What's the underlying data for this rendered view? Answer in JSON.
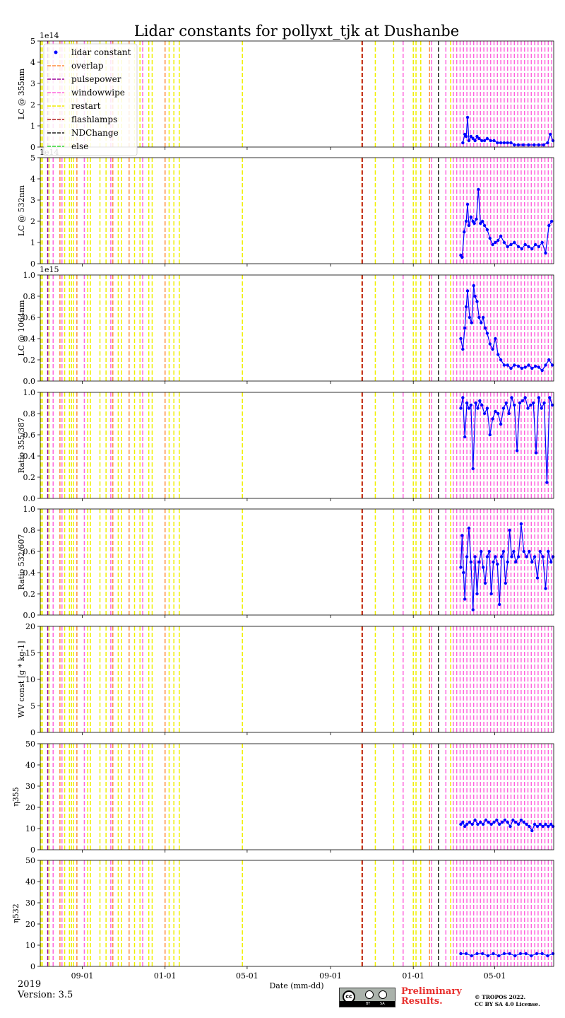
{
  "chart_data": {
    "type": "scatter",
    "title": "Lidar constants for pollyxt_tjk at Dushanbe",
    "xlabel": "Date (mm-dd)",
    "x_range": [
      "2019-07-01",
      "2021-07-27"
    ],
    "x_tick_labels": [
      "09-01",
      "01-01",
      "05-01",
      "09-01",
      "01-01",
      "05-01",
      "09-01",
      "01-01",
      "05-01"
    ],
    "x_tick_dates": [
      "2019-09-01",
      "2020-01-01",
      "2020-05-01",
      "2020-09-01",
      "2021-01-01",
      "2021-05-01",
      "2021-09-01",
      "2022-01-01",
      "2022-05-01"
    ],
    "year_label": "2019",
    "legend": {
      "placement": "upper-left of first panel",
      "entries": [
        {
          "label": "lidar constant",
          "color": "#0000ff",
          "marker": "dot"
        },
        {
          "label": "overlap",
          "color": "#ff8c3b",
          "marker": "dashed"
        },
        {
          "label": "pulsepower",
          "color": "#9b009b",
          "marker": "dashed"
        },
        {
          "label": "windowwipe",
          "color": "#ff66dd",
          "marker": "dashed"
        },
        {
          "label": "restart",
          "color": "#f0f000",
          "marker": "dashed"
        },
        {
          "label": "flashlamps",
          "color": "#b22222",
          "marker": "dashed"
        },
        {
          "label": "NDChange",
          "color": "#222222",
          "marker": "dashed"
        },
        {
          "label": "else",
          "color": "#33dd33",
          "marker": "dashed"
        }
      ]
    },
    "event_lines": {
      "restart": [
        "2019-07-02",
        "2019-07-04",
        "2019-07-14",
        "2019-08-06",
        "2019-08-13",
        "2019-08-16",
        "2019-08-19",
        "2019-09-09",
        "2019-09-13",
        "2019-09-27",
        "2019-10-06",
        "2019-10-24",
        "2019-10-29",
        "2019-11-17",
        "2019-11-25",
        "2019-12-08",
        "2019-12-13",
        "2020-01-07",
        "2020-01-14",
        "2020-01-22",
        "2020-04-24",
        "2020-11-06",
        "2020-12-03",
        "2021-01-01",
        "2021-01-05",
        "2021-01-12",
        "2021-02-07",
        "2021-02-25"
      ],
      "overlap": [
        "2019-07-30",
        "2019-08-24",
        "2019-10-16",
        "2019-11-09",
        "2020-01-01",
        "2020-10-17",
        "2021-01-25"
      ],
      "windowwipe": [
        "2019-07-20",
        "2019-08-02",
        "2019-09-04",
        "2019-10-13",
        "2019-11-29",
        "2020-12-17",
        "2021-01-28",
        "2021-02-18",
        "2021-03-01",
        "2021-03-06",
        "2021-03-11",
        "2021-03-16",
        "2021-03-21",
        "2021-03-26",
        "2021-03-31",
        "2021-04-05",
        "2021-04-10",
        "2021-04-15",
        "2021-04-20",
        "2021-04-25",
        "2021-04-30",
        "2021-05-05",
        "2021-05-10",
        "2021-05-15",
        "2021-05-20",
        "2021-05-25",
        "2021-05-30",
        "2021-06-04",
        "2021-06-09",
        "2021-06-14",
        "2021-06-19",
        "2021-06-24",
        "2021-06-29",
        "2021-07-04",
        "2021-07-09",
        "2021-07-14",
        "2021-07-19",
        "2021-07-24"
      ],
      "pulsepower": [
        "2019-07-12"
      ],
      "flashlamps": [
        "2020-10-18"
      ],
      "NDChange": [
        "2021-02-07"
      ],
      "else": []
    },
    "panels": [
      {
        "ylabel": "LC @ 355nm",
        "ylim": [
          0,
          5
        ],
        "yticks": [
          0,
          1,
          2,
          3,
          4,
          5
        ],
        "offset_label": "1e14",
        "series": [
          {
            "x": [
              "2021-03-15",
              "2021-03-18",
              "2021-03-20",
              "2021-03-22",
              "2021-03-24",
              "2021-03-27",
              "2021-03-30",
              "2021-04-02",
              "2021-04-05",
              "2021-04-08",
              "2021-04-12",
              "2021-04-16",
              "2021-04-20",
              "2021-04-25",
              "2021-04-30",
              "2021-05-05",
              "2021-05-10",
              "2021-05-15",
              "2021-05-20",
              "2021-05-25",
              "2021-05-30",
              "2021-06-05",
              "2021-06-12",
              "2021-06-20",
              "2021-06-28",
              "2021-07-05",
              "2021-07-12",
              "2021-07-18",
              "2021-07-22",
              "2021-07-26"
            ],
            "y": [
              0.2,
              0.6,
              0.5,
              1.4,
              0.3,
              0.5,
              0.4,
              0.3,
              0.5,
              0.4,
              0.3,
              0.3,
              0.4,
              0.3,
              0.3,
              0.2,
              0.2,
              0.2,
              0.2,
              0.2,
              0.1,
              0.1,
              0.1,
              0.1,
              0.1,
              0.1,
              0.1,
              0.2,
              0.6,
              0.3
            ]
          }
        ]
      },
      {
        "ylabel": "LC @ 532nm",
        "ylim": [
          0,
          5
        ],
        "yticks": [
          0,
          1,
          2,
          3,
          4,
          5
        ],
        "offset_label": "1e14",
        "series": [
          {
            "x": [
              "2021-03-12",
              "2021-03-14",
              "2021-03-17",
              "2021-03-20",
              "2021-03-22",
              "2021-03-24",
              "2021-03-27",
              "2021-03-30",
              "2021-04-01",
              "2021-04-04",
              "2021-04-07",
              "2021-04-10",
              "2021-04-13",
              "2021-04-16",
              "2021-04-20",
              "2021-04-24",
              "2021-04-28",
              "2021-05-02",
              "2021-05-06",
              "2021-05-10",
              "2021-05-15",
              "2021-05-20",
              "2021-05-25",
              "2021-05-30",
              "2021-06-05",
              "2021-06-10",
              "2021-06-15",
              "2021-06-20",
              "2021-06-25",
              "2021-06-30",
              "2021-07-05",
              "2021-07-10",
              "2021-07-15",
              "2021-07-20",
              "2021-07-24"
            ],
            "y": [
              0.4,
              0.3,
              1.5,
              2.0,
              2.8,
              1.8,
              2.2,
              2.0,
              1.9,
              2.1,
              3.5,
              1.9,
              2.0,
              1.8,
              1.6,
              1.2,
              0.9,
              1.0,
              1.1,
              1.3,
              1.0,
              0.8,
              0.9,
              1.0,
              0.8,
              0.7,
              0.9,
              0.8,
              0.7,
              0.9,
              0.8,
              1.0,
              0.5,
              1.8,
              2.0
            ]
          }
        ]
      },
      {
        "ylabel": "LC @ 1064nm",
        "ylim": [
          0,
          1.0
        ],
        "yticks": [
          0.0,
          0.2,
          0.4,
          0.6,
          0.8,
          1.0
        ],
        "offset_label": "1e15",
        "series": [
          {
            "x": [
              "2021-03-12",
              "2021-03-15",
              "2021-03-18",
              "2021-03-20",
              "2021-03-22",
              "2021-03-25",
              "2021-03-28",
              "2021-03-31",
              "2021-04-02",
              "2021-04-05",
              "2021-04-08",
              "2021-04-11",
              "2021-04-14",
              "2021-04-17",
              "2021-04-20",
              "2021-04-24",
              "2021-04-28",
              "2021-05-02",
              "2021-05-06",
              "2021-05-10",
              "2021-05-15",
              "2021-05-20",
              "2021-05-25",
              "2021-05-30",
              "2021-06-05",
              "2021-06-10",
              "2021-06-15",
              "2021-06-20",
              "2021-06-25",
              "2021-06-30",
              "2021-07-05",
              "2021-07-10",
              "2021-07-15",
              "2021-07-20",
              "2021-07-25"
            ],
            "y": [
              0.4,
              0.3,
              0.5,
              0.7,
              0.85,
              0.6,
              0.55,
              0.9,
              0.8,
              0.75,
              0.6,
              0.55,
              0.6,
              0.5,
              0.45,
              0.35,
              0.3,
              0.4,
              0.25,
              0.2,
              0.15,
              0.15,
              0.12,
              0.15,
              0.14,
              0.12,
              0.13,
              0.15,
              0.12,
              0.14,
              0.13,
              0.1,
              0.15,
              0.2,
              0.15
            ]
          }
        ]
      },
      {
        "ylabel": "Ratio 355/387",
        "ylim": [
          0,
          1.0
        ],
        "yticks": [
          0.0,
          0.2,
          0.4,
          0.6,
          0.8,
          1.0
        ],
        "series": [
          {
            "x": [
              "2021-03-12",
              "2021-03-15",
              "2021-03-18",
              "2021-03-21",
              "2021-03-24",
              "2021-03-27",
              "2021-03-30",
              "2021-04-03",
              "2021-04-06",
              "2021-04-09",
              "2021-04-12",
              "2021-04-16",
              "2021-04-20",
              "2021-04-24",
              "2021-04-28",
              "2021-05-02",
              "2021-05-06",
              "2021-05-10",
              "2021-05-14",
              "2021-05-18",
              "2021-05-22",
              "2021-05-26",
              "2021-05-30",
              "2021-06-03",
              "2021-06-07",
              "2021-06-11",
              "2021-06-15",
              "2021-06-19",
              "2021-06-23",
              "2021-06-27",
              "2021-07-01",
              "2021-07-05",
              "2021-07-09",
              "2021-07-13",
              "2021-07-17",
              "2021-07-21",
              "2021-07-25"
            ],
            "y": [
              0.85,
              0.95,
              0.58,
              0.9,
              0.85,
              0.88,
              0.28,
              0.9,
              0.85,
              0.92,
              0.88,
              0.8,
              0.85,
              0.6,
              0.75,
              0.82,
              0.8,
              0.7,
              0.85,
              0.9,
              0.8,
              0.95,
              0.88,
              0.45,
              0.9,
              0.92,
              0.95,
              0.85,
              0.88,
              0.9,
              0.43,
              0.95,
              0.85,
              0.9,
              0.15,
              0.95,
              0.88
            ]
          }
        ]
      },
      {
        "ylabel": "Ratio 532/607",
        "ylim": [
          0,
          1.0
        ],
        "yticks": [
          0.0,
          0.2,
          0.4,
          0.6,
          0.8,
          1.0
        ],
        "series": [
          {
            "x": [
              "2021-03-12",
              "2021-03-14",
              "2021-03-16",
              "2021-03-18",
              "2021-03-21",
              "2021-03-24",
              "2021-03-27",
              "2021-03-30",
              "2021-04-02",
              "2021-04-05",
              "2021-04-08",
              "2021-04-11",
              "2021-04-14",
              "2021-04-17",
              "2021-04-20",
              "2021-04-23",
              "2021-04-26",
              "2021-04-29",
              "2021-05-02",
              "2021-05-05",
              "2021-05-08",
              "2021-05-11",
              "2021-05-14",
              "2021-05-17",
              "2021-05-20",
              "2021-05-23",
              "2021-05-26",
              "2021-05-29",
              "2021-06-01",
              "2021-06-05",
              "2021-06-09",
              "2021-06-13",
              "2021-06-17",
              "2021-06-21",
              "2021-06-25",
              "2021-06-29",
              "2021-07-03",
              "2021-07-07",
              "2021-07-11",
              "2021-07-15",
              "2021-07-19",
              "2021-07-23",
              "2021-07-26"
            ],
            "y": [
              0.45,
              0.75,
              0.4,
              0.15,
              0.55,
              0.82,
              0.5,
              0.05,
              0.55,
              0.2,
              0.5,
              0.6,
              0.45,
              0.3,
              0.55,
              0.6,
              0.2,
              0.5,
              0.55,
              0.48,
              0.1,
              0.55,
              0.6,
              0.3,
              0.5,
              0.8,
              0.55,
              0.6,
              0.5,
              0.55,
              0.86,
              0.6,
              0.55,
              0.6,
              0.5,
              0.55,
              0.35,
              0.6,
              0.55,
              0.25,
              0.6,
              0.5,
              0.55
            ]
          }
        ]
      },
      {
        "ylabel": "WV const [g * kg-1]",
        "ylim": [
          0,
          20
        ],
        "yticks": [
          0,
          5,
          10,
          15,
          20
        ],
        "series": [
          {
            "x": [],
            "y": []
          }
        ]
      },
      {
        "ylabel": "η355",
        "ylim": [
          0,
          50
        ],
        "yticks": [
          0,
          10,
          20,
          30,
          40,
          50
        ],
        "series": [
          {
            "x": [
              "2021-03-12",
              "2021-03-15",
              "2021-03-18",
              "2021-03-21",
              "2021-03-25",
              "2021-03-29",
              "2021-04-02",
              "2021-04-06",
              "2021-04-10",
              "2021-04-14",
              "2021-04-18",
              "2021-04-22",
              "2021-04-26",
              "2021-04-30",
              "2021-05-04",
              "2021-05-08",
              "2021-05-12",
              "2021-05-16",
              "2021-05-20",
              "2021-05-24",
              "2021-05-28",
              "2021-06-01",
              "2021-06-05",
              "2021-06-09",
              "2021-06-13",
              "2021-06-17",
              "2021-06-21",
              "2021-06-25",
              "2021-06-29",
              "2021-07-03",
              "2021-07-07",
              "2021-07-11",
              "2021-07-15",
              "2021-07-19",
              "2021-07-23",
              "2021-07-26"
            ],
            "y": [
              12,
              13,
              11,
              12,
              13,
              12,
              14,
              12,
              13,
              12,
              14,
              13,
              12,
              13,
              14,
              12,
              13,
              14,
              13,
              11,
              14,
              13,
              12,
              14,
              13,
              12,
              11,
              9,
              12,
              11,
              12,
              11,
              12,
              11,
              12,
              11
            ]
          }
        ]
      },
      {
        "ylabel": "η532",
        "ylim": [
          0,
          50
        ],
        "yticks": [
          0,
          10,
          20,
          30,
          40,
          50
        ],
        "series": [
          {
            "x": [
              "2021-03-12",
              "2021-03-20",
              "2021-03-28",
              "2021-04-05",
              "2021-04-13",
              "2021-04-21",
              "2021-04-29",
              "2021-05-07",
              "2021-05-15",
              "2021-05-23",
              "2021-05-31",
              "2021-06-08",
              "2021-06-16",
              "2021-06-24",
              "2021-07-02",
              "2021-07-10",
              "2021-07-18",
              "2021-07-26"
            ],
            "y": [
              6,
              6,
              5,
              6,
              6,
              5,
              6,
              5,
              6,
              6,
              5,
              6,
              6,
              5,
              6,
              6,
              5,
              6
            ]
          }
        ]
      }
    ]
  },
  "footer": {
    "version": "Version: 3.5",
    "preliminary_line1": "Preliminary",
    "preliminary_line2": "Results.",
    "copyright_line1": "© TROPOS 2022.",
    "copyright_line2": "CC BY SA 4.0 License.",
    "cc_badge_labels": [
      "BY",
      "SA"
    ]
  }
}
